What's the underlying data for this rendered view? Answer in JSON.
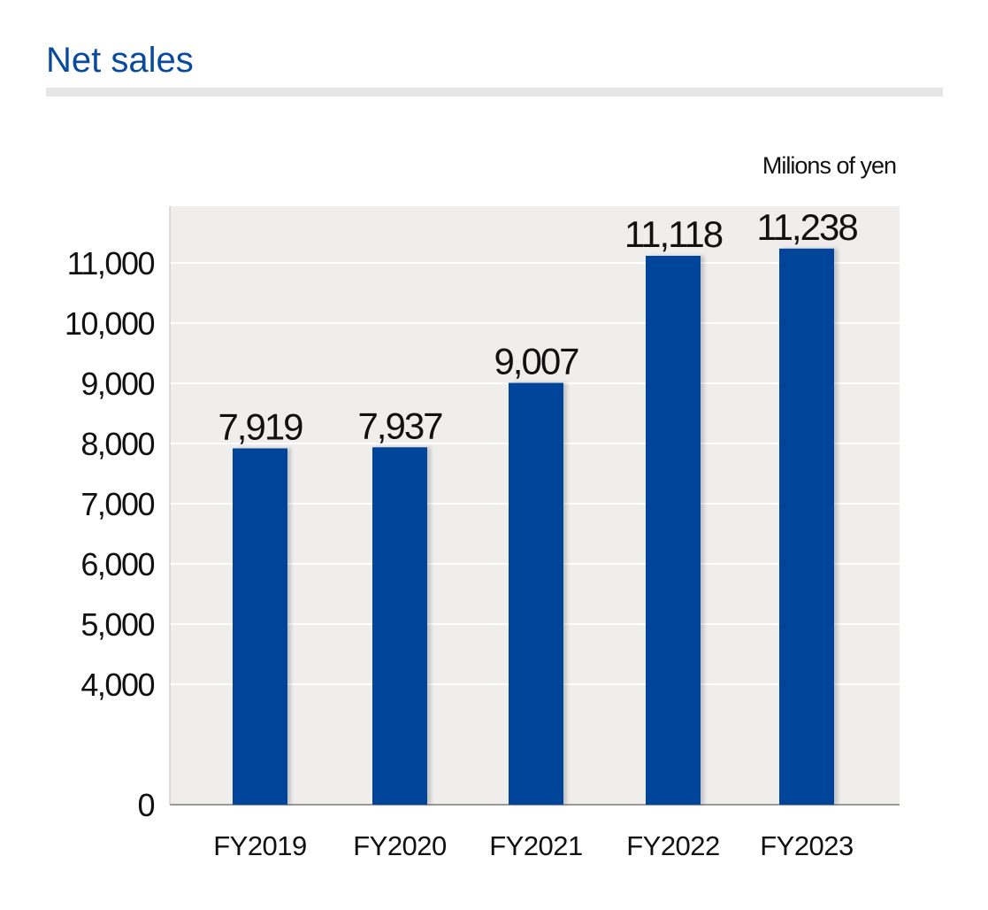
{
  "header": {
    "title": "Net sales"
  },
  "chart_data": {
    "type": "bar",
    "title": "Net sales",
    "unit_label": "Milions of yen",
    "categories": [
      "FY2019",
      "FY2020",
      "FY2021",
      "FY2022",
      "FY2023"
    ],
    "values": [
      7919,
      7937,
      9007,
      11118,
      11238
    ],
    "value_labels": [
      "7,919",
      "7,937",
      "9,007",
      "11,118",
      "11,238"
    ],
    "y_ticks": [
      0,
      4000,
      5000,
      6000,
      7000,
      8000,
      9000,
      10000,
      11000
    ],
    "y_tick_labels": [
      "0",
      "4,000",
      "5,000",
      "6,000",
      "7,000",
      "8,000",
      "9,000",
      "10,000",
      "11,000"
    ],
    "axis_break": true,
    "grid": true,
    "legend": "none",
    "colors": {
      "bar": "#00449a",
      "plot_background": "#efeeed",
      "gridline": "#ffffff",
      "title": "#0a4a9c"
    }
  }
}
